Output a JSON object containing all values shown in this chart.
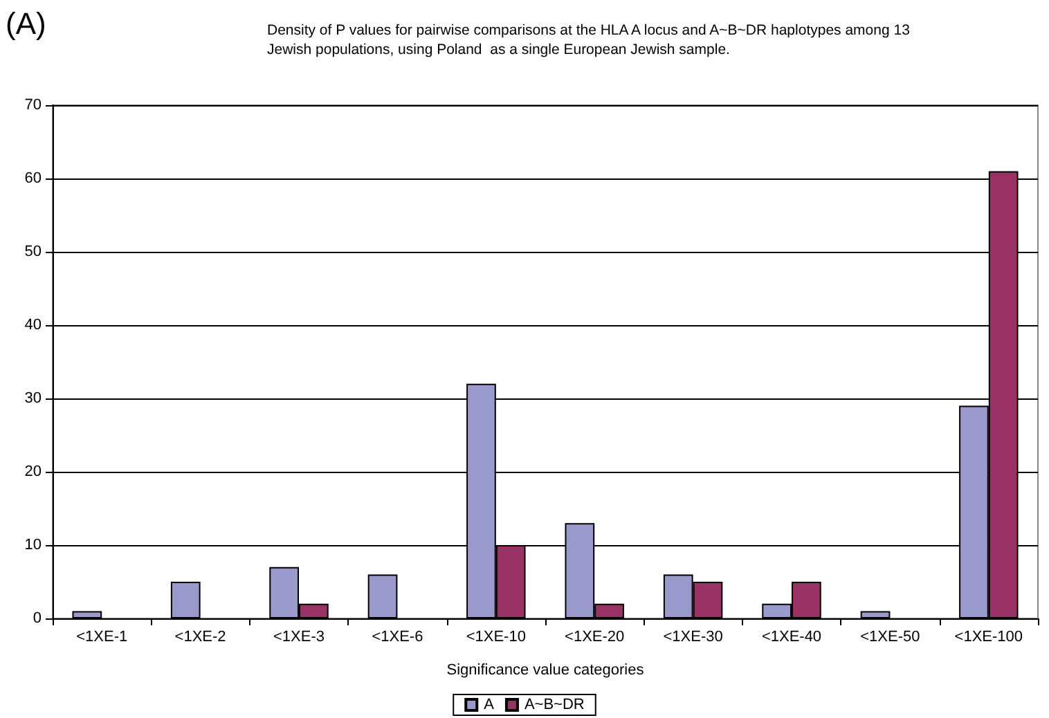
{
  "chart_data": {
    "type": "bar",
    "title": "Density of P values for pairwise comparisons at the HLA A locus and A~B~DR haplotypes among 13 Jewish populations, using Poland  as a single European Jewish sample.",
    "annotations": [
      "(A)"
    ],
    "xlabel": "Significance value categories",
    "categories": [
      "<1XE-1",
      "<1XE-2",
      "<1XE-3",
      "<1XE-6",
      "<1XE-10",
      "<1XE-20",
      "<1XE-30",
      "<1XE-40",
      "<1XE-50",
      "<1XE-100"
    ],
    "series": [
      {
        "name": "A",
        "color": "#9999cc",
        "values": [
          1,
          5,
          7,
          6,
          32,
          13,
          6,
          2,
          1,
          29
        ]
      },
      {
        "name": "A~B~DR",
        "color": "#993366",
        "values": [
          0,
          0,
          2,
          0,
          10,
          2,
          5,
          5,
          0,
          61
        ]
      }
    ],
    "ylim": [
      0,
      70
    ],
    "yticks": [
      0,
      10,
      20,
      30,
      40,
      50,
      60,
      70
    ],
    "grid": "y",
    "legend": "bottom"
  }
}
